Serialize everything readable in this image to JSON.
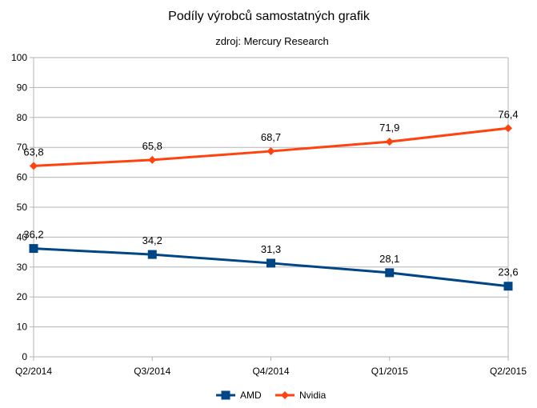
{
  "chart_data": {
    "type": "line",
    "title": "Podíly výrobců samostatných grafik",
    "subtitle": "zdroj: Mercury Research",
    "categories": [
      "Q2/2014",
      "Q3/2014",
      "Q4/2014",
      "Q1/2015",
      "Q2/2015"
    ],
    "ylim": [
      0,
      100
    ],
    "yticks": [
      "0",
      "10",
      "20",
      "30",
      "40",
      "50",
      "60",
      "70",
      "80",
      "90",
      "100"
    ],
    "grid": true,
    "legend_position": "bottom",
    "series": [
      {
        "name": "AMD",
        "color": "#004586",
        "marker": "square",
        "values": [
          36.2,
          34.2,
          31.3,
          28.1,
          23.6
        ],
        "labels": [
          "36,2",
          "34,2",
          "31,3",
          "28,1",
          "23,6"
        ]
      },
      {
        "name": "Nvidia",
        "color": "#ff420e",
        "marker": "diamond",
        "values": [
          63.8,
          65.8,
          68.7,
          71.9,
          76.4
        ],
        "labels": [
          "63,8",
          "65,8",
          "68,7",
          "71,9",
          "76,4"
        ]
      }
    ]
  }
}
